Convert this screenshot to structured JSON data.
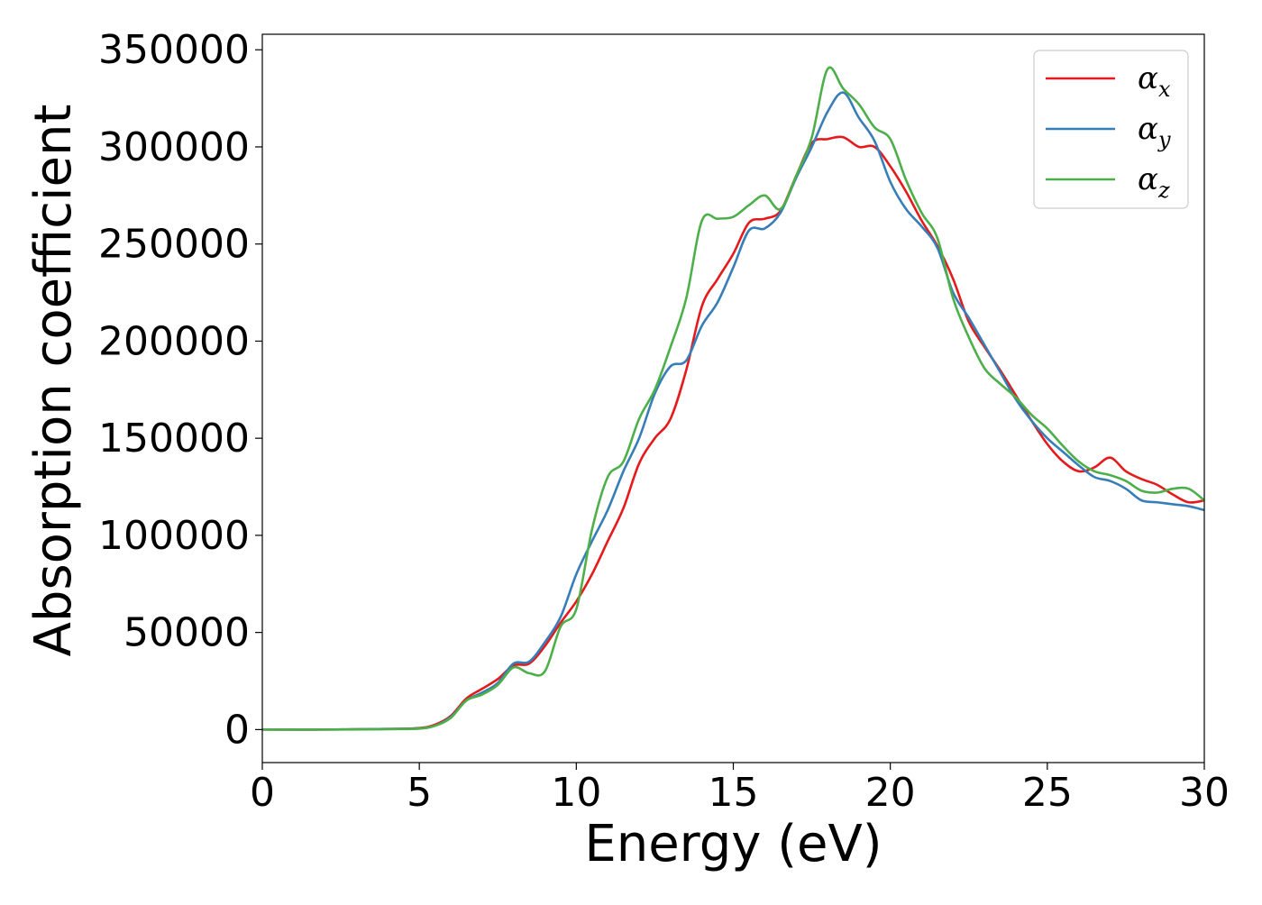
{
  "chart_data": {
    "type": "line",
    "xlabel": "Energy (eV)",
    "ylabel": "Absorption coefficient",
    "xlim": [
      0,
      30
    ],
    "ylim": [
      -17000,
      358000
    ],
    "x_ticks": [
      0,
      5,
      10,
      15,
      20,
      25,
      30
    ],
    "y_ticks": [
      0,
      50000,
      100000,
      150000,
      200000,
      250000,
      300000,
      350000
    ],
    "grid": false,
    "legend_position": "top-right",
    "series": [
      {
        "name": "αx",
        "symbol": "α",
        "subscript": "x",
        "color": "#e41a1c",
        "x": [
          0,
          2,
          4,
          5,
          5.5,
          6,
          6.5,
          7,
          7.5,
          8,
          8.5,
          9,
          9.5,
          10,
          10.5,
          11,
          11.5,
          12,
          12.5,
          13,
          13.5,
          14,
          14.5,
          15,
          15.5,
          16,
          16.5,
          17,
          17.5,
          18,
          18.5,
          19,
          19.5,
          20,
          20.5,
          21,
          21.5,
          22,
          22.5,
          23,
          23.5,
          24,
          24.5,
          25,
          25.5,
          26,
          26.5,
          27,
          27.5,
          28,
          28.5,
          29,
          29.5,
          30
        ],
        "values": [
          0,
          0,
          300,
          800,
          2500,
          7000,
          16000,
          21000,
          26000,
          33000,
          34000,
          43000,
          55000,
          66000,
          80000,
          97000,
          114000,
          137000,
          150000,
          160000,
          185000,
          218000,
          232000,
          245000,
          261000,
          263000,
          267000,
          285000,
          302000,
          304000,
          305000,
          300000,
          300000,
          290000,
          277000,
          262000,
          249000,
          232000,
          210000,
          197000,
          185000,
          172000,
          159000,
          147000,
          138000,
          133000,
          135000,
          140000,
          133000,
          129000,
          126000,
          121000,
          117000,
          118000
        ]
      },
      {
        "name": "αy",
        "symbol": "α",
        "subscript": "y",
        "color": "#377eb8",
        "x": [
          0,
          2,
          4,
          5,
          5.5,
          6,
          6.5,
          7,
          7.5,
          8,
          8.5,
          9,
          9.5,
          10,
          10.5,
          11,
          11.5,
          12,
          12.5,
          13,
          13.5,
          14,
          14.5,
          15,
          15.5,
          16,
          16.5,
          17,
          17.5,
          18,
          18.5,
          19,
          19.5,
          20,
          20.5,
          21,
          21.5,
          22,
          22.5,
          23,
          23.5,
          24,
          24.5,
          25,
          25.5,
          26,
          26.5,
          27,
          27.5,
          28,
          28.5,
          29,
          29.5,
          30
        ],
        "values": [
          0,
          0,
          300,
          600,
          2000,
          6500,
          15000,
          19000,
          24000,
          34000,
          35000,
          45000,
          58000,
          80000,
          97000,
          113000,
          133000,
          150000,
          173000,
          187000,
          190000,
          208000,
          220000,
          238000,
          257000,
          258000,
          266000,
          284000,
          300000,
          318000,
          328000,
          315000,
          303000,
          282000,
          268000,
          259000,
          248000,
          225000,
          212000,
          198000,
          184000,
          170000,
          159000,
          150000,
          143000,
          136000,
          130000,
          128000,
          124000,
          118000,
          117000,
          116000,
          115000,
          113000
        ]
      },
      {
        "name": "αz",
        "symbol": "α",
        "subscript": "z",
        "color": "#4daf4a",
        "x": [
          0,
          2,
          4,
          5,
          5.5,
          6,
          6.5,
          7,
          7.5,
          8,
          8.5,
          9,
          9.5,
          10,
          10.5,
          11,
          11.5,
          12,
          12.5,
          13,
          13.5,
          14,
          14.5,
          15,
          15.5,
          16,
          16.5,
          17,
          17.5,
          18,
          18.5,
          19,
          19.5,
          20,
          20.5,
          21,
          21.5,
          22,
          22.5,
          23,
          23.5,
          24,
          24.5,
          25,
          25.5,
          26,
          26.5,
          27,
          27.5,
          28,
          28.5,
          29,
          29.5,
          30
        ],
        "values": [
          0,
          0,
          200,
          500,
          2000,
          6000,
          15000,
          18000,
          23000,
          32000,
          29000,
          30000,
          53000,
          62000,
          103000,
          130000,
          138000,
          160000,
          175000,
          197000,
          222000,
          262000,
          263000,
          264000,
          270000,
          275000,
          268000,
          285000,
          305000,
          340000,
          330000,
          322000,
          310000,
          304000,
          283000,
          266000,
          253000,
          222000,
          202000,
          186000,
          178000,
          171000,
          162000,
          155000,
          146000,
          138000,
          133000,
          131000,
          128000,
          123000,
          122000,
          124000,
          124000,
          118000
        ]
      }
    ]
  }
}
